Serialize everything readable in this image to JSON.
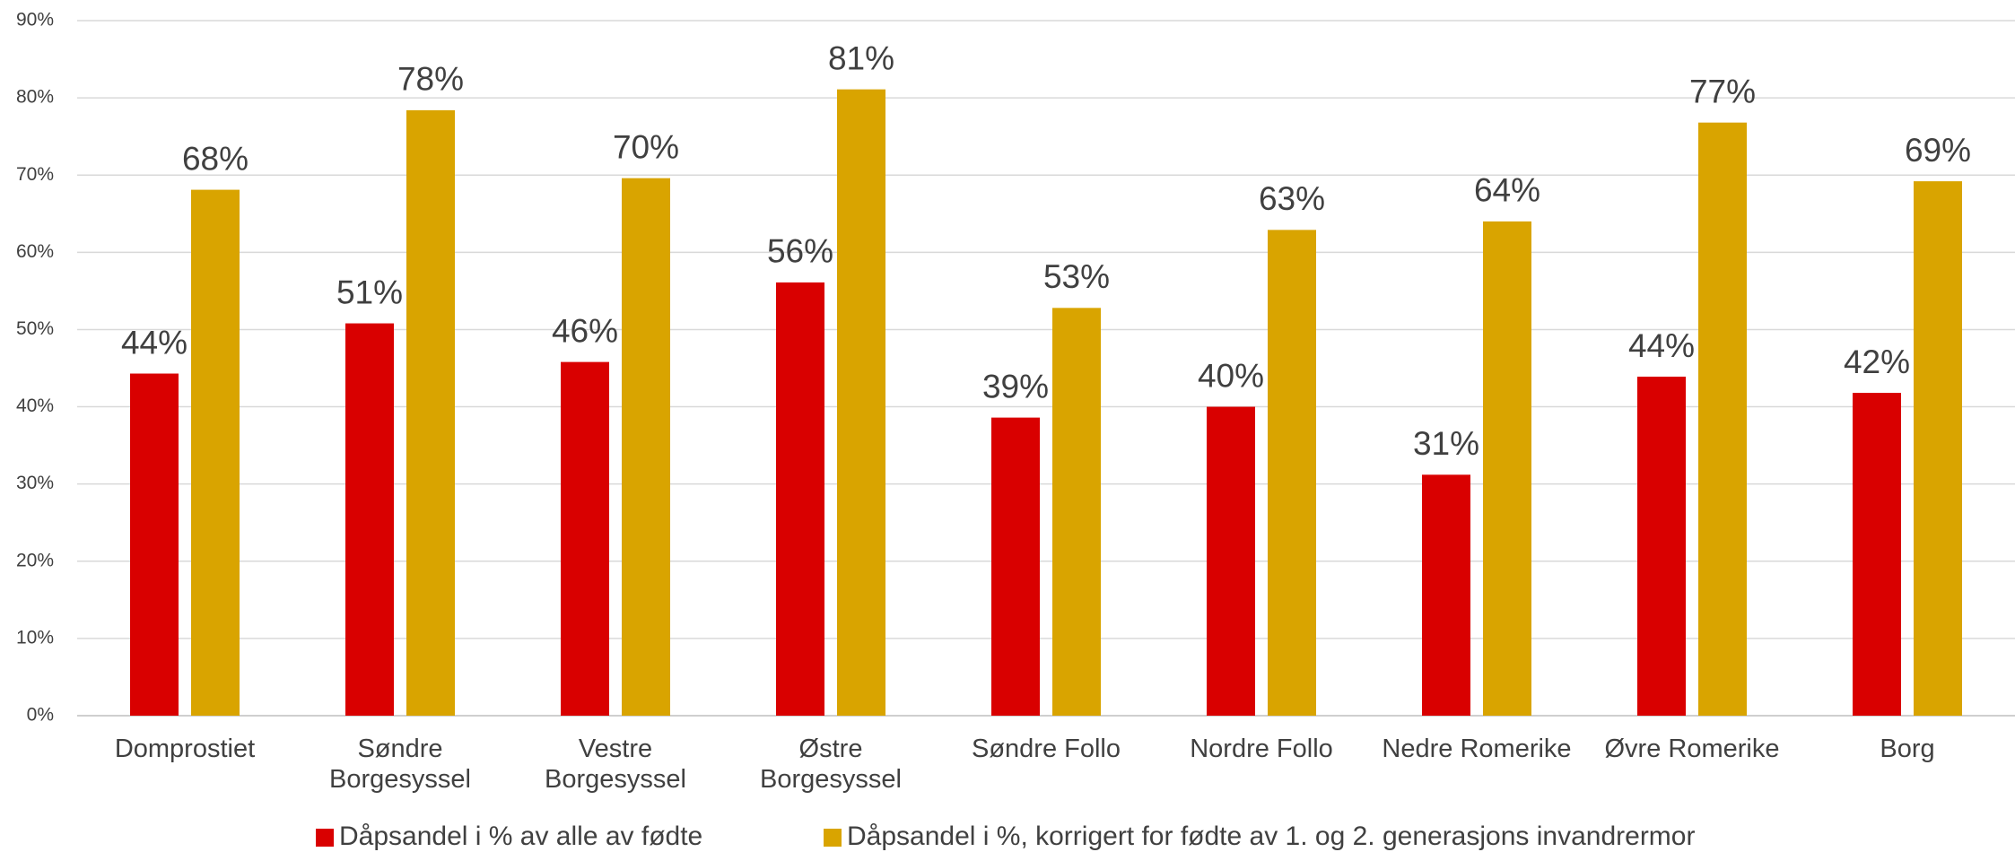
{
  "chart_data": {
    "type": "bar",
    "categories": [
      "Domprostiet",
      "Søndre Borgesyssel",
      "Vestre Borgesyssel",
      "Østre Borgesyssel",
      "Søndre Follo",
      "Nordre Follo",
      "Nedre Romerike",
      "Øvre Romerike",
      "Borg"
    ],
    "series": [
      {
        "name": "Dåpsandel i % av alle av fødte",
        "color": "#d90000",
        "values": [
          44.3,
          50.8,
          45.8,
          56.1,
          38.6,
          40.0,
          31.2,
          43.9,
          41.8
        ],
        "value_labels": [
          "44%",
          "51%",
          "46%",
          "56%",
          "39%",
          "40%",
          "31%",
          "44%",
          "42%"
        ]
      },
      {
        "name": "Dåpsandel i %, korrigert for fødte av 1. og 2. generasjons invandrermor",
        "color": "#d9a400",
        "values": [
          68.1,
          78.4,
          69.6,
          81.1,
          52.8,
          62.9,
          64.0,
          76.8,
          69.2
        ],
        "value_labels": [
          "68%",
          "78%",
          "70%",
          "81%",
          "53%",
          "63%",
          "64%",
          "77%",
          "69%"
        ]
      }
    ],
    "ylim": [
      0,
      90
    ],
    "yticks": [
      {
        "value": 0,
        "label": "0%"
      },
      {
        "value": 10,
        "label": "10%"
      },
      {
        "value": 20,
        "label": "20%"
      },
      {
        "value": 30,
        "label": "30%"
      },
      {
        "value": 40,
        "label": "40%"
      },
      {
        "value": 50,
        "label": "50%"
      },
      {
        "value": 60,
        "label": "60%"
      },
      {
        "value": 70,
        "label": "70%"
      },
      {
        "value": 80,
        "label": "80%"
      },
      {
        "value": 90,
        "label": "90%"
      }
    ],
    "grid": true,
    "legend": "bottom"
  }
}
